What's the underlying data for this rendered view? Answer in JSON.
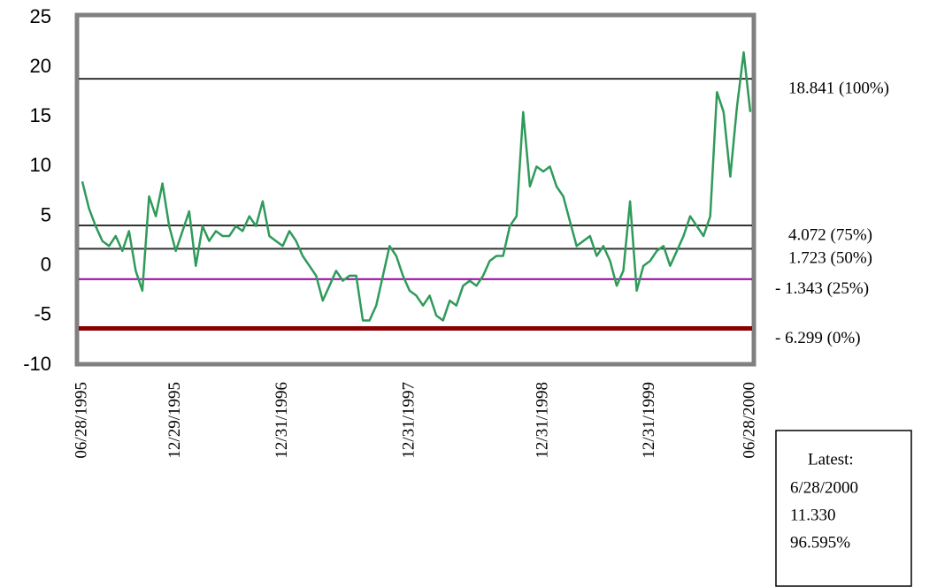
{
  "chart_data": {
    "type": "line",
    "categories": [
      "06/28/1995",
      null,
      null,
      null,
      null,
      null,
      null,
      null,
      null,
      null,
      null,
      null,
      null,
      null,
      "12/29/1995",
      null,
      null,
      null,
      null,
      null,
      null,
      null,
      null,
      null,
      null,
      null,
      null,
      null,
      null,
      null,
      "12/31/1996",
      null,
      null,
      null,
      null,
      null,
      null,
      null,
      null,
      null,
      null,
      null,
      null,
      null,
      null,
      null,
      null,
      null,
      null,
      "12/31/1997",
      null,
      null,
      null,
      null,
      null,
      null,
      null,
      null,
      null,
      null,
      null,
      null,
      null,
      null,
      null,
      null,
      null,
      null,
      null,
      "12/31/1998",
      null,
      null,
      null,
      null,
      null,
      null,
      null,
      null,
      null,
      null,
      null,
      null,
      null,
      null,
      null,
      "12/31/1999",
      null,
      null,
      null,
      null,
      null,
      null,
      null,
      null,
      null,
      null,
      null,
      null,
      null,
      null,
      "06/28/2000"
    ],
    "series": [
      {
        "color": "#2f9a5a",
        "values": [
          8.5,
          5.8,
          4,
          2.5,
          2,
          3,
          1.5,
          3.5,
          -0.5,
          -2.5,
          7,
          5,
          8.3,
          4,
          1.5,
          3.5,
          5.5,
          0,
          4,
          2.5,
          3.5,
          3,
          3,
          4,
          3.5,
          5,
          4,
          6.5,
          3,
          2.5,
          2,
          3.5,
          2.5,
          1,
          0,
          -1,
          -3.5,
          -2,
          -0.5,
          -1.5,
          -1,
          -1,
          -5.5,
          -5.5,
          -4,
          -1,
          2,
          1,
          -1,
          -2.5,
          -3,
          -4,
          -3,
          -5,
          -5.5,
          -3.5,
          -4,
          -2,
          -1.5,
          -2,
          -1,
          0.5,
          1,
          1,
          4,
          5,
          15.5,
          8,
          10,
          9.5,
          10,
          8,
          7,
          4.5,
          2,
          2.5,
          3,
          1,
          2,
          0.5,
          -2,
          -0.5,
          6.5,
          -2.5,
          0,
          0.5,
          1.5,
          2,
          0,
          1.5,
          3,
          5,
          4,
          3,
          5,
          17.5,
          15.5,
          9,
          16,
          21.5,
          15.5
        ]
      }
    ],
    "ylim": [
      -10,
      25
    ],
    "yticks": [
      25,
      20,
      15,
      10,
      5,
      0,
      -5,
      -10
    ],
    "reference_lines": [
      {
        "value": 18.841,
        "label": "18.841 (100%)",
        "color": "#333333",
        "line_width": 2
      },
      {
        "value": 4.072,
        "label": "4.072 (75%)",
        "color": "#333333",
        "line_width": 2
      },
      {
        "value": 1.723,
        "label": "1.723 (50%)",
        "color": "#333333",
        "line_width": 2
      },
      {
        "value": -1.343,
        "label": "- 1.343 (25%)",
        "color": "#990099",
        "line_width": 2
      },
      {
        "value": -6.299,
        "label": "- 6.299 (0%)",
        "color": "#8b0000",
        "line_width": 5
      }
    ],
    "latest_box": {
      "title": "Latest:",
      "date": "6/28/2000",
      "value": "11.330",
      "percent": "96.595%"
    }
  }
}
